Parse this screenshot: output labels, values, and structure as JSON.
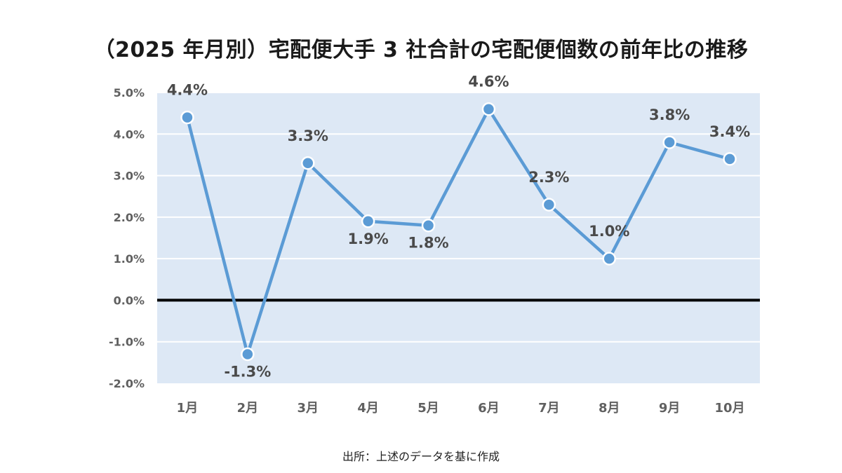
{
  "chart_data": {
    "type": "line",
    "title": "（2025 年月別）宅配便大手 3 社合計の宅配便個数の前年比の推移",
    "categories": [
      "1月",
      "2月",
      "3月",
      "4月",
      "5月",
      "6月",
      "7月",
      "8月",
      "9月",
      "10月"
    ],
    "series": [
      {
        "values": [
          4.4,
          -1.3,
          3.3,
          1.9,
          1.8,
          4.6,
          2.3,
          1.0,
          3.8,
          3.4
        ],
        "data_labels": [
          "4.4%",
          "-1.3%",
          "3.3%",
          "1.9%",
          "1.8%",
          "4.6%",
          "2.3%",
          "1.0%",
          "3.8%",
          "3.4%"
        ]
      }
    ],
    "ylim": [
      -2.0,
      5.0
    ],
    "yticks": [
      5.0,
      4.0,
      3.0,
      2.0,
      1.0,
      0.0,
      -1.0,
      -2.0
    ],
    "ytick_labels": [
      "5.0%",
      "4.0%",
      "3.0%",
      "2.0%",
      "1.0%",
      "0.0%",
      "-1.0%",
      "-2.0%"
    ],
    "label_position": [
      "above",
      "below",
      "above",
      "below",
      "below",
      "above",
      "above",
      "above",
      "above",
      "above"
    ],
    "grid": true,
    "source": "出所：上述のデータを基に作成",
    "colors": {
      "plot_background": "#dde8f5",
      "gridline": "#ffffff",
      "zero_line": "#000000",
      "series_line": "#5b9bd5",
      "label_text": "#4a4a4a",
      "axis_text": "#606060"
    }
  }
}
